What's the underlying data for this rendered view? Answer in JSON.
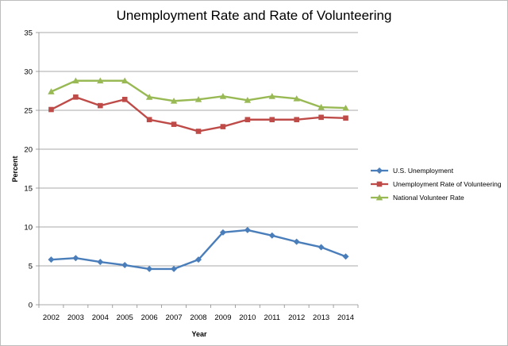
{
  "chart_data": {
    "type": "line",
    "title": "Unemployment Rate and Rate of Volunteering",
    "xlabel": "Year",
    "ylabel": "Percent",
    "ylim": [
      0,
      35
    ],
    "ytick_step": 5,
    "yticks": [
      "0",
      "5",
      "10",
      "15",
      "20",
      "25",
      "30",
      "35"
    ],
    "grid": true,
    "legend_position": "right",
    "categories": [
      "2002",
      "2003",
      "2004",
      "2005",
      "2006",
      "2007",
      "2008",
      "2009",
      "2010",
      "2011",
      "2012",
      "2013",
      "2014"
    ],
    "series": [
      {
        "name": "U.S. Unemployment",
        "color": "#4a7ebb",
        "marker": "diamond",
        "values": [
          5.8,
          6.0,
          5.5,
          5.1,
          4.6,
          4.6,
          5.8,
          9.3,
          9.6,
          8.9,
          8.1,
          7.4,
          6.2
        ]
      },
      {
        "name": "Unemployment Rate of Volunteering",
        "color": "#be4b48",
        "marker": "square",
        "values": [
          25.1,
          26.7,
          25.6,
          26.4,
          23.8,
          23.2,
          22.3,
          22.9,
          23.8,
          23.8,
          23.8,
          24.1,
          24.0
        ]
      },
      {
        "name": "National Volunteer Rate",
        "color": "#98b954",
        "marker": "triangle",
        "values": [
          27.4,
          28.8,
          28.8,
          28.8,
          26.7,
          26.2,
          26.4,
          26.8,
          26.3,
          26.8,
          26.5,
          25.4,
          25.3
        ]
      }
    ]
  }
}
